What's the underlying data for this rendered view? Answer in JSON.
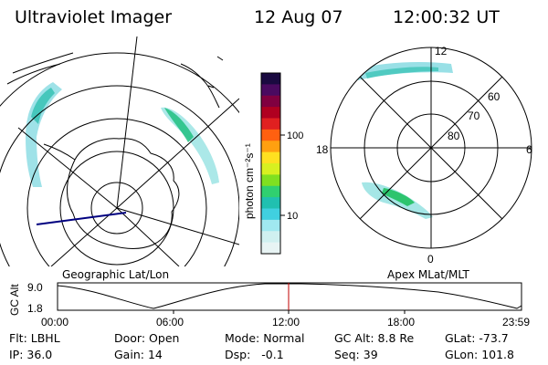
{
  "header": {
    "title": "Ultraviolet Imager",
    "date": "12 Aug 07",
    "time": "12:00:32 UT"
  },
  "geo_map": {
    "label": "Geographic Lat/Lon"
  },
  "colorbar": {
    "unit_label": "photon cm⁻²s⁻¹",
    "tick_labels": [
      "100",
      "10"
    ],
    "colors": [
      "#1a0a40",
      "#4a0a60",
      "#800040",
      "#b00020",
      "#e02020",
      "#ff6010",
      "#ffa010",
      "#ffe020",
      "#d8f020",
      "#80e020",
      "#30d070",
      "#20c0b0",
      "#40d0e0",
      "#a0e8f0",
      "#d0f0f0",
      "#e8f4f4"
    ]
  },
  "polar_map": {
    "label": "Apex MLat/MLT",
    "mlt_labels": {
      "top": "12",
      "left": "18",
      "right": "6",
      "bottom": "0"
    },
    "lat_labels": [
      "60",
      "70",
      "80"
    ]
  },
  "altitude_plot": {
    "ylabel": "GC Alt",
    "y_ticks": [
      "9.0",
      "1.8"
    ],
    "x_ticks": [
      "00:00",
      "06:00",
      "12:00",
      "18:00",
      "23:59"
    ],
    "marker_color": "#c00000"
  },
  "info": {
    "flt_label": "Flt:",
    "flt_value": "LBHL",
    "ip_label": "IP:",
    "ip_value": "36.0",
    "door_label": "Door:",
    "door_value": "Open",
    "gain_label": "Gain:",
    "gain_value": "14",
    "mode_label": "Mode:",
    "mode_value": "Normal",
    "dsp_label": "Dsp:",
    "dsp_value": "-0.1",
    "gcalt_label": "GC Alt:",
    "gcalt_value": "8.8 Re",
    "seq_label": "Seq:",
    "seq_value": "39",
    "glat_label": "GLat:",
    "glat_value": "-73.7",
    "glon_label": "GLon:",
    "glon_value": "101.8"
  }
}
